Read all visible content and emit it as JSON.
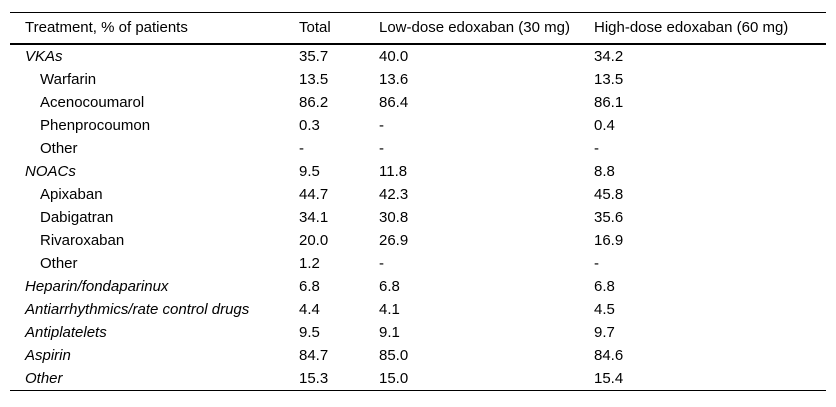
{
  "page": {
    "background_color": "#ffffff",
    "text_color": "#000000",
    "rule_color": "#000000"
  },
  "table": {
    "columns": [
      "Treatment, % of patients",
      "Total",
      "Low-dose edoxaban (30 mg)",
      "High-dose edoxaban (60 mg)"
    ],
    "rows": [
      {
        "label": "VKAs",
        "style": "category",
        "values": [
          "35.7",
          "40.0",
          "34.2"
        ]
      },
      {
        "label": "Warfarin",
        "style": "sub",
        "values": [
          "13.5",
          "13.6",
          "13.5"
        ]
      },
      {
        "label": "Acenocoumarol",
        "style": "sub",
        "values": [
          "86.2",
          "86.4",
          "86.1"
        ]
      },
      {
        "label": "Phenprocoumon",
        "style": "sub",
        "values": [
          "0.3",
          "-",
          "0.4"
        ]
      },
      {
        "label": "Other",
        "style": "sub",
        "values": [
          "-",
          "-",
          "-"
        ]
      },
      {
        "label": "NOACs",
        "style": "category",
        "values": [
          "9.5",
          "11.8",
          "8.8"
        ]
      },
      {
        "label": "Apixaban",
        "style": "sub",
        "values": [
          "44.7",
          "42.3",
          "45.8"
        ]
      },
      {
        "label": "Dabigatran",
        "style": "sub",
        "values": [
          "34.1",
          "30.8",
          "35.6"
        ]
      },
      {
        "label": "Rivaroxaban",
        "style": "sub",
        "values": [
          "20.0",
          "26.9",
          "16.9"
        ]
      },
      {
        "label": "Other",
        "style": "sub",
        "values": [
          "1.2",
          "-",
          "-"
        ]
      },
      {
        "label": "Heparin/fondaparinux",
        "style": "category",
        "values": [
          "6.8",
          "6.8",
          "6.8"
        ]
      },
      {
        "label": "Antiarrhythmics/rate control drugs",
        "style": "category",
        "values": [
          "4.4",
          "4.1",
          "4.5"
        ]
      },
      {
        "label": "Antiplatelets",
        "style": "category",
        "values": [
          "9.5",
          "9.1",
          "9.7"
        ]
      },
      {
        "label": "Aspirin",
        "style": "category",
        "values": [
          "84.7",
          "85.0",
          "84.6"
        ]
      },
      {
        "label": "Other",
        "style": "category",
        "values": [
          "15.3",
          "15.0",
          "15.4"
        ]
      }
    ]
  }
}
